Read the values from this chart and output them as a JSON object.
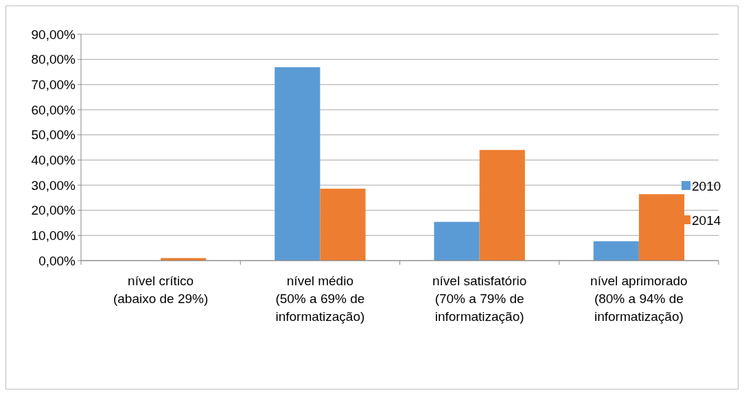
{
  "chart_data": {
    "type": "bar",
    "categories": [
      "nível crítico\n(abaixo de 29%)",
      "nível médio\n(50% a 69% de\ninformatização)",
      "nível satisfatório\n(70% a 79% de\ninformatização)",
      "nível aprimorado\n(80% a 94% de\ninformatização)"
    ],
    "series": [
      {
        "name": "2010",
        "color": "#5b9bd5",
        "values": [
          0,
          76.9,
          15.4,
          7.7
        ]
      },
      {
        "name": "2014",
        "color": "#ed7d31",
        "values": [
          1.0,
          28.6,
          44.0,
          26.4
        ]
      }
    ],
    "ylim": [
      0,
      90
    ],
    "yticks": [
      {
        "value": 0,
        "label": "0,00%"
      },
      {
        "value": 10,
        "label": "10,00%"
      },
      {
        "value": 20,
        "label": "20,00%"
      },
      {
        "value": 30,
        "label": "30,00%"
      },
      {
        "value": 40,
        "label": "40,00%"
      },
      {
        "value": 50,
        "label": "50,00%"
      },
      {
        "value": 60,
        "label": "60,00%"
      },
      {
        "value": 70,
        "label": "70,00%"
      },
      {
        "value": 80,
        "label": "80,00%"
      },
      {
        "value": 90,
        "label": "90,00%"
      }
    ],
    "grid": "y",
    "legend": "right"
  }
}
